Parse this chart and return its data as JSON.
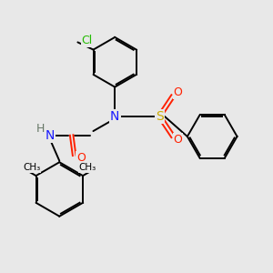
{
  "background_color": "#e8e8e8",
  "bond_color": "#000000",
  "label_colors": {
    "N": "#1a1aff",
    "O": "#ff2000",
    "S": "#ccaa00",
    "Cl": "#22bb00",
    "H": "#667766"
  },
  "figsize": [
    3.0,
    3.0
  ],
  "dpi": 100
}
